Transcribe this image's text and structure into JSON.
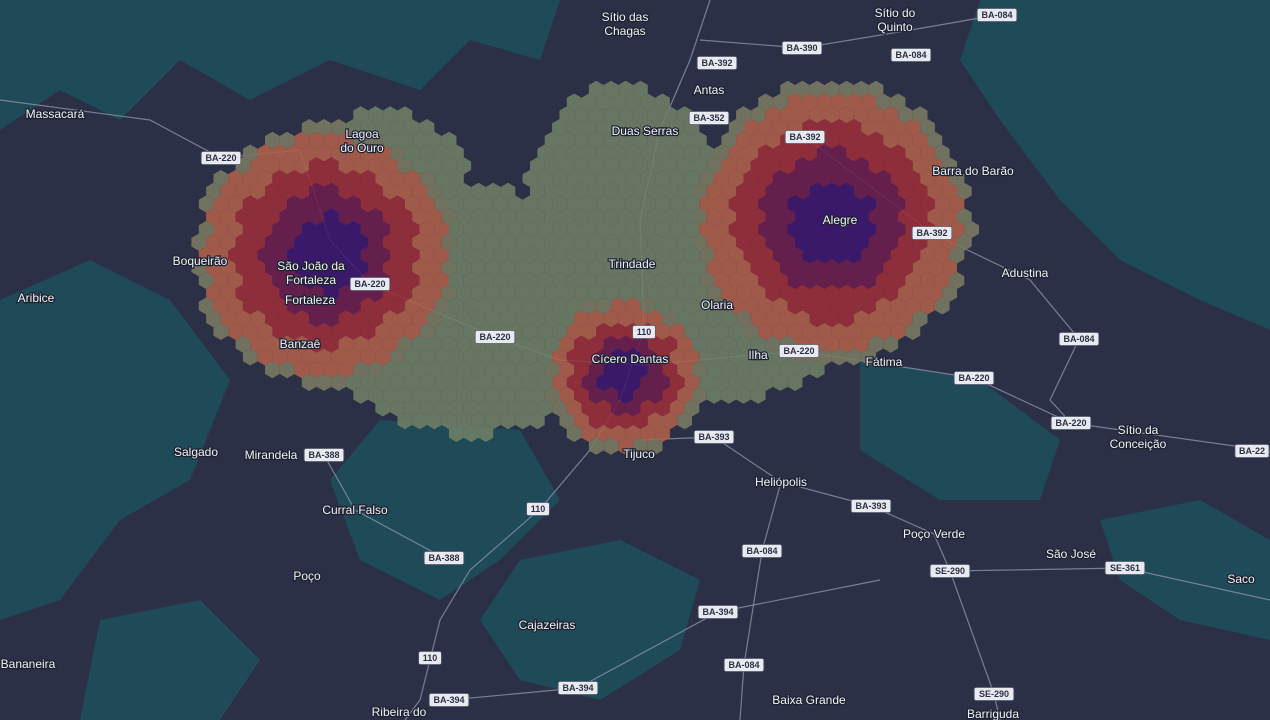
{
  "places": [
    {
      "lines": [
        "Sítio das",
        "Chagas"
      ]
    },
    {
      "lines": [
        "Sítio do",
        "Quinto"
      ]
    },
    {
      "lines": [
        "Massacará"
      ]
    },
    {
      "lines": [
        "Lagoa",
        "do Ouro"
      ]
    },
    {
      "lines": [
        "Antas"
      ]
    },
    {
      "lines": [
        "Duas Serras"
      ]
    },
    {
      "lines": [
        "Barra do Barão"
      ]
    },
    {
      "lines": [
        "Alegre"
      ]
    },
    {
      "lines": [
        "Boqueirão"
      ]
    },
    {
      "lines": [
        "São João da",
        "Fortaleza"
      ]
    },
    {
      "lines": [
        "Fortaleza"
      ]
    },
    {
      "lines": [
        "Trindade"
      ]
    },
    {
      "lines": [
        "Adustina"
      ]
    },
    {
      "lines": [
        "Aribice"
      ]
    },
    {
      "lines": [
        "Olaria"
      ]
    },
    {
      "lines": [
        "Banzaê"
      ]
    },
    {
      "lines": [
        "Cícero Dantas"
      ]
    },
    {
      "lines": [
        "Ilha"
      ]
    },
    {
      "lines": [
        "Fátima"
      ]
    },
    {
      "lines": [
        "Sítio da",
        "Conceição"
      ]
    },
    {
      "lines": [
        "Salgado"
      ]
    },
    {
      "lines": [
        "Mirandela"
      ]
    },
    {
      "lines": [
        "Tijuco"
      ]
    },
    {
      "lines": [
        "Heliópolis"
      ]
    },
    {
      "lines": [
        "Curral Falso"
      ]
    },
    {
      "lines": [
        "Poço Verde"
      ]
    },
    {
      "lines": [
        "São José"
      ]
    },
    {
      "lines": [
        "Poço"
      ]
    },
    {
      "lines": [
        "Saco"
      ]
    },
    {
      "lines": [
        "Cajazeiras"
      ]
    },
    {
      "lines": [
        "Bananeira"
      ]
    },
    {
      "lines": [
        "Baixa Grande"
      ]
    },
    {
      "lines": [
        "Ribeira do"
      ]
    },
    {
      "lines": [
        "Barriguda"
      ]
    }
  ],
  "roads": [
    "BA-084",
    "BA-390",
    "BA-084",
    "BA-392",
    "BA-352",
    "BA-392",
    "BA-220",
    "BA-392",
    "BA-220",
    "110",
    "BA-220",
    "BA-220",
    "BA-084",
    "BA-220",
    "BA-220",
    "BA-22",
    "BA-393",
    "BA-388",
    "BA-393",
    "110",
    "BA-084",
    "BA-388",
    "SE-290",
    "SE-361",
    "BA-394",
    "BA-084",
    "110",
    "BA-394",
    "BA-394",
    "SE-290"
  ]
}
